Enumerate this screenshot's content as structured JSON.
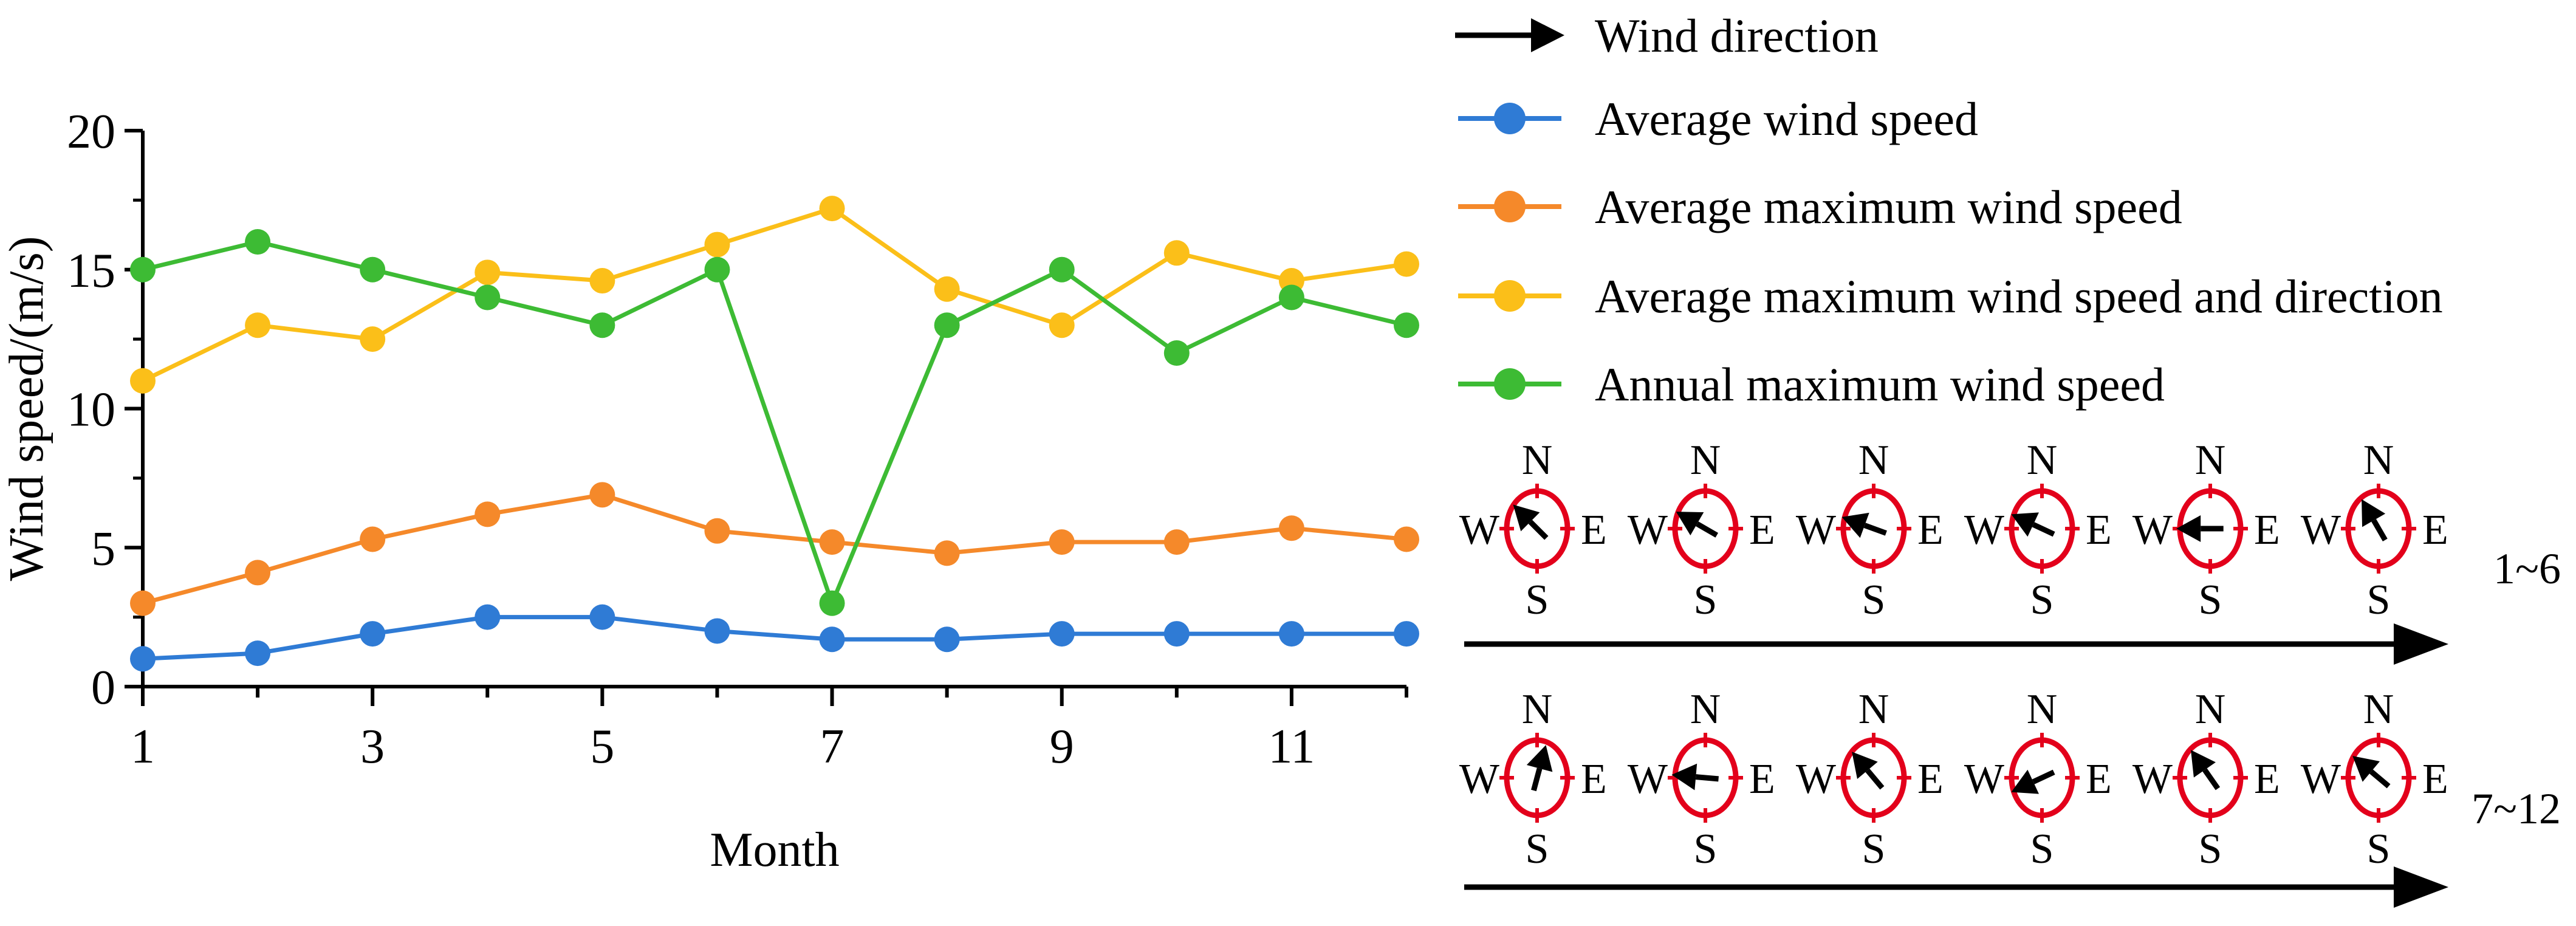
{
  "chart_data": {
    "type": "line",
    "xlabel": "Month",
    "ylabel": "Wind speed/(m/s)",
    "xlim": [
      1,
      12
    ],
    "ylim": [
      0,
      20
    ],
    "xticks": [
      1,
      3,
      5,
      7,
      9,
      11
    ],
    "yticks": [
      0,
      5,
      10,
      15,
      20
    ],
    "x": [
      1,
      2,
      3,
      4,
      5,
      6,
      7,
      8,
      9,
      10,
      11,
      12
    ],
    "series": [
      {
        "name": "Average wind speed",
        "color": "#2f7bd5",
        "values": [
          1.0,
          1.2,
          1.9,
          2.5,
          2.5,
          2.0,
          1.7,
          1.7,
          1.9,
          1.9,
          1.9,
          1.9
        ]
      },
      {
        "name": "Average maximum wind speed",
        "color": "#f5892a",
        "values": [
          3.0,
          4.1,
          5.3,
          6.2,
          6.9,
          5.6,
          5.2,
          4.8,
          5.2,
          5.2,
          5.7,
          5.3
        ]
      },
      {
        "name": "Average maximum wind speed and direction",
        "color": "#fbbf19",
        "values": [
          11.0,
          13.0,
          12.5,
          14.9,
          14.6,
          15.9,
          17.2,
          14.3,
          13.0,
          15.6,
          14.6,
          15.2
        ]
      },
      {
        "name": "Annual maximum wind speed",
        "color": "#3dbb34",
        "values": [
          15.0,
          16.0,
          15.0,
          14.0,
          13.0,
          15.0,
          3.0,
          13.0,
          15.0,
          12.0,
          14.0,
          13.0
        ]
      }
    ],
    "legend": {
      "position": "right",
      "direction_label": "Wind direction"
    },
    "compass": {
      "labels": {
        "n": "N",
        "s": "S",
        "w": "W",
        "e": "E"
      },
      "rows": [
        {
          "label": "1~6",
          "months": [
            1,
            2,
            3,
            4,
            5,
            6
          ],
          "directions_deg": [
            315,
            300,
            290,
            295,
            270,
            330
          ]
        },
        {
          "label": "7~12",
          "months": [
            7,
            8,
            9,
            10,
            11,
            12
          ],
          "directions_deg": [
            15,
            275,
            320,
            245,
            325,
            310
          ]
        }
      ]
    }
  }
}
